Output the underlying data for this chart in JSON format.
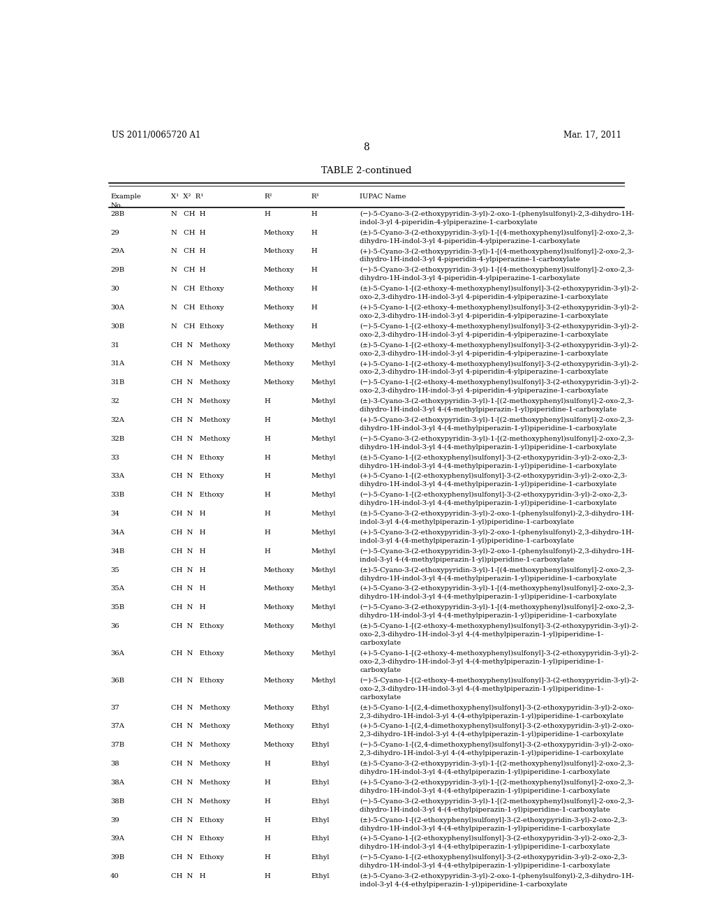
{
  "header_left": "US 2011/0065720 A1",
  "header_right": "Mar. 17, 2011",
  "page_number": "8",
  "table_title": "TABLE 2-continued",
  "bg_color": "#ffffff",
  "text_color": "#000000",
  "font_size_header": 8.5,
  "font_size_body": 7.2,
  "font_size_title_table": 9.5,
  "rows": [
    [
      "28B",
      "N   CH  H",
      "H",
      "H",
      "(−)-5-Cyano-3-(2-ethoxypyridin-3-yl)-2-oxo-1-(phenylsulfonyl)-2,3-dihydro-1H-\nindol-3-yl 4-piperidin-4-ylpiperazine-1-carboxylate"
    ],
    [
      "29",
      "N   CH  H",
      "Methoxy",
      "H",
      "(±)-5-Cyano-3-(2-ethoxypyridin-3-yl)-1-[(4-methoxyphenyl)sulfonyl]-2-oxo-2,3-\ndihydro-1H-indol-3-yl 4-piperidin-4-ylpiperazine-1-carboxylate"
    ],
    [
      "29A",
      "N   CH  H",
      "Methoxy",
      "H",
      "(+)-5-Cyano-3-(2-ethoxypyridin-3-yl)-1-[(4-methoxyphenyl)sulfonyl]-2-oxo-2,3-\ndihydro-1H-indol-3-yl 4-piperidin-4-ylpiperazine-1-carboxylate"
    ],
    [
      "29B",
      "N   CH  H",
      "Methoxy",
      "H",
      "(−)-5-Cyano-3-(2-ethoxypyridin-3-yl)-1-[(4-methoxyphenyl)sulfonyl]-2-oxo-2,3-\ndihydro-1H-indol-3-yl 4-piperidin-4-ylpiperazine-1-carboxylate"
    ],
    [
      "30",
      "N   CH  Ethoxy",
      "Methoxy",
      "H",
      "(±)-5-Cyano-1-[(2-ethoxy-4-methoxyphenyl)sulfonyl]-3-(2-ethoxypyridin-3-yl)-2-\noxo-2,3-dihydro-1H-indol-3-yl 4-piperidin-4-ylpiperazine-1-carboxylate"
    ],
    [
      "30A",
      "N   CH  Ethoxy",
      "Methoxy",
      "H",
      "(+)-5-Cyano-1-[(2-ethoxy-4-methoxyphenyl)sulfonyl]-3-(2-ethoxypyridin-3-yl)-2-\noxo-2,3-dihydro-1H-indol-3-yl 4-piperidin-4-ylpiperazine-1-carboxylate"
    ],
    [
      "30B",
      "N   CH  Ethoxy",
      "Methoxy",
      "H",
      "(−)-5-Cyano-1-[(2-ethoxy-4-methoxyphenyl)sulfonyl]-3-(2-ethoxypyridin-3-yl)-2-\noxo-2,3-dihydro-1H-indol-3-yl 4-piperidin-4-ylpiperazine-1-carboxylate"
    ],
    [
      "31",
      "CH  N   Methoxy",
      "Methoxy",
      "Methyl",
      "(±)-5-Cyano-1-[(2-ethoxy-4-methoxyphenyl)sulfonyl]-3-(2-ethoxypyridin-3-yl)-2-\noxo-2,3-dihydro-1H-indol-3-yl 4-piperidin-4-ylpiperazine-1-carboxylate"
    ],
    [
      "31A",
      "CH  N   Methoxy",
      "Methoxy",
      "Methyl",
      "(+)-5-Cyano-1-[(2-ethoxy-4-methoxyphenyl)sulfonyl]-3-(2-ethoxypyridin-3-yl)-2-\noxo-2,3-dihydro-1H-indol-3-yl 4-piperidin-4-ylpiperazine-1-carboxylate"
    ],
    [
      "31B",
      "CH  N   Methoxy",
      "Methoxy",
      "Methyl",
      "(−)-5-Cyano-1-[(2-ethoxy-4-methoxyphenyl)sulfonyl]-3-(2-ethoxypyridin-3-yl)-2-\noxo-2,3-dihydro-1H-indol-3-yl 4-piperidin-4-ylpiperazine-1-carboxylate"
    ],
    [
      "32",
      "CH  N   Methoxy",
      "H",
      "Methyl",
      "(±)-3-Cyano-3-(2-ethoxypyridin-3-yl)-1-[(2-methoxyphenyl)sulfonyl]-2-oxo-2,3-\ndihydro-1H-indol-3-yl 4-(4-methylpiperazin-1-yl)piperidine-1-carboxylate"
    ],
    [
      "32A",
      "CH  N   Methoxy",
      "H",
      "Methyl",
      "(+)-5-Cyano-3-(2-ethoxypyridin-3-yl)-1-[(2-methoxyphenyl)sulfonyl]-2-oxo-2,3-\ndihydro-1H-indol-3-yl 4-(4-methylpiperazin-1-yl)piperidine-1-carboxylate"
    ],
    [
      "32B",
      "CH  N   Methoxy",
      "H",
      "Methyl",
      "(−)-5-Cyano-3-(2-ethoxypyridin-3-yl)-1-[(2-methoxyphenyl)sulfonyl]-2-oxo-2,3-\ndihydro-1H-indol-3-yl 4-(4-methylpiperazin-1-yl)piperidine-1-carboxylate"
    ],
    [
      "33",
      "CH  N   Ethoxy",
      "H",
      "Methyl",
      "(±)-5-Cyano-1-[(2-ethoxyphenyl)sulfonyl]-3-(2-ethoxypyridin-3-yl)-2-oxo-2,3-\ndihydro-1H-indol-3-yl 4-(4-methylpiperazin-1-yl)piperidine-1-carboxylate"
    ],
    [
      "33A",
      "CH  N   Ethoxy",
      "H",
      "Methyl",
      "(+)-5-Cyano-1-[(2-ethoxyphenyl)sulfonyl]-3-(2-ethoxypyridin-3-yl)-2-oxo-2,3-\ndihydro-1H-indol-3-yl 4-(4-methylpiperazin-1-yl)piperidine-1-carboxylate"
    ],
    [
      "33B",
      "CH  N   Ethoxy",
      "H",
      "Methyl",
      "(−)-5-Cyano-1-[(2-ethoxyphenyl)sulfonyl]-3-(2-ethoxypyridin-3-yl)-2-oxo-2,3-\ndihydro-1H-indol-3-yl 4-(4-methylpiperazin-1-yl)piperidine-1-carboxylate"
    ],
    [
      "34",
      "CH  N   H",
      "H",
      "Methyl",
      "(±)-5-Cyano-3-(2-ethoxypyridin-3-yl)-2-oxo-1-(phenylsulfonyl)-2,3-dihydro-1H-\nindol-3-yl 4-(4-methylpiperazin-1-yl)piperidine-1-carboxylate"
    ],
    [
      "34A",
      "CH  N   H",
      "H",
      "Methyl",
      "(+)-5-Cyano-3-(2-ethoxypyridin-3-yl)-2-oxo-1-(phenylsulfonyl)-2,3-dihydro-1H-\nindol-3-yl 4-(4-methylpiperazin-1-yl)piperidine-1-carboxylate"
    ],
    [
      "34B",
      "CH  N   H",
      "H",
      "Methyl",
      "(−)-5-Cyano-3-(2-ethoxypyridin-3-yl)-2-oxo-1-(phenylsulfonyl)-2,3-dihydro-1H-\nindol-3-yl 4-(4-methylpiperazin-1-yl)piperidine-1-carboxylate"
    ],
    [
      "35",
      "CH  N   H",
      "Methoxy",
      "Methyl",
      "(±)-5-Cyano-3-(2-ethoxypyridin-3-yl)-1-[(4-methoxyphenyl)sulfonyl]-2-oxo-2,3-\ndihydro-1H-indol-3-yl 4-(4-methylpiperazin-1-yl)piperidine-1-carboxylate"
    ],
    [
      "35A",
      "CH  N   H",
      "Methoxy",
      "Methyl",
      "(+)-5-Cyano-3-(2-ethoxypyridin-3-yl)-1-[(4-methoxyphenyl)sulfonyl]-2-oxo-2,3-\ndihydro-1H-indol-3-yl 4-(4-methylpiperazin-1-yl)piperidine-1-carboxylate"
    ],
    [
      "35B",
      "CH  N   H",
      "Methoxy",
      "Methyl",
      "(−)-5-Cyano-3-(2-ethoxypyridin-3-yl)-1-[(4-methoxyphenyl)sulfonyl]-2-oxo-2,3-\ndihydro-1H-indol-3-yl 4-(4-methylpiperazin-1-yl)piperidine-1-carboxylate"
    ],
    [
      "36",
      "CH  N   Ethoxy",
      "Methoxy",
      "Methyl",
      "(±)-5-Cyano-1-[(2-ethoxy-4-methoxyphenyl)sulfonyl]-3-(2-ethoxypyridin-3-yl)-2-\noxo-2,3-dihydro-1H-indol-3-yl 4-(4-methylpiperazin-1-yl)piperidine-1-\ncarboxylate"
    ],
    [
      "36A",
      "CH  N   Ethoxy",
      "Methoxy",
      "Methyl",
      "(+)-5-Cyano-1-[(2-ethoxy-4-methoxyphenyl)sulfonyl]-3-(2-ethoxypyridin-3-yl)-2-\noxo-2,3-dihydro-1H-indol-3-yl 4-(4-methylpiperazin-1-yl)piperidine-1-\ncarboxylate"
    ],
    [
      "36B",
      "CH  N   Ethoxy",
      "Methoxy",
      "Methyl",
      "(−)-5-Cyano-1-[(2-ethoxy-4-methoxyphenyl)sulfonyl]-3-(2-ethoxypyridin-3-yl)-2-\noxo-2,3-dihydro-1H-indol-3-yl 4-(4-methylpiperazin-1-yl)piperidine-1-\ncarboxylate"
    ],
    [
      "37",
      "CH  N   Methoxy",
      "Methoxy",
      "Ethyl",
      "(±)-5-Cyano-1-[(2,4-dimethoxyphenyl)sulfonyl]-3-(2-ethoxypyridin-3-yl)-2-oxo-\n2,3-dihydro-1H-indol-3-yl 4-(4-ethylpiperazin-1-yl)piperidine-1-carboxylate"
    ],
    [
      "37A",
      "CH  N   Methoxy",
      "Methoxy",
      "Ethyl",
      "(+)-5-Cyano-1-[(2,4-dimethoxyphenyl)sulfonyl]-3-(2-ethoxypyridin-3-yl)-2-oxo-\n2,3-dihydro-1H-indol-3-yl 4-(4-ethylpiperazin-1-yl)piperidine-1-carboxylate"
    ],
    [
      "37B",
      "CH  N   Methoxy",
      "Methoxy",
      "Ethyl",
      "(−)-5-Cyano-1-[(2,4-dimethoxyphenyl)sulfonyl]-3-(2-ethoxypyridin-3-yl)-2-oxo-\n2,3-dihydro-1H-indol-3-yl 4-(4-ethylpiperazin-1-yl)piperidine-1-carboxylate"
    ],
    [
      "38",
      "CH  N   Methoxy",
      "H",
      "Ethyl",
      "(±)-5-Cyano-3-(2-ethoxypyridin-3-yl)-1-[(2-methoxyphenyl)sulfonyl]-2-oxo-2,3-\ndihydro-1H-indol-3-yl 4-(4-ethylpiperazin-1-yl)piperidine-1-carboxylate"
    ],
    [
      "38A",
      "CH  N   Methoxy",
      "H",
      "Ethyl",
      "(+)-5-Cyano-3-(2-ethoxypyridin-3-yl)-1-[(2-methoxyphenyl)sulfonyl]-2-oxo-2,3-\ndihydro-1H-indol-3-yl 4-(4-ethylpiperazin-1-yl)piperidine-1-carboxylate"
    ],
    [
      "38B",
      "CH  N   Methoxy",
      "H",
      "Ethyl",
      "(−)-5-Cyano-3-(2-ethoxypyridin-3-yl)-1-[(2-methoxyphenyl)sulfonyl]-2-oxo-2,3-\ndihydro-1H-indol-3-yl 4-(4-ethylpiperazin-1-yl)piperidine-1-carboxylate"
    ],
    [
      "39",
      "CH  N   Ethoxy",
      "H",
      "Ethyl",
      "(±)-5-Cyano-1-[(2-ethoxyphenyl)sulfonyl]-3-(2-ethoxypyridin-3-yl)-2-oxo-2,3-\ndihydro-1H-indol-3-yl 4-(4-ethylpiperazin-1-yl)piperidine-1-carboxylate"
    ],
    [
      "39A",
      "CH  N   Ethoxy",
      "H",
      "Ethyl",
      "(+)-5-Cyano-1-[(2-ethoxyphenyl)sulfonyl]-3-(2-ethoxypyridin-3-yl)-2-oxo-2,3-\ndihydro-1H-indol-3-yl 4-(4-ethylpiperazin-1-yl)piperidine-1-carboxylate"
    ],
    [
      "39B",
      "CH  N   Ethoxy",
      "H",
      "Ethyl",
      "(−)-5-Cyano-1-[(2-ethoxyphenyl)sulfonyl]-3-(2-ethoxypyridin-3-yl)-2-oxo-2,3-\ndihydro-1H-indol-3-yl 4-(4-ethylpiperazin-1-yl)piperidine-1-carboxylate"
    ],
    [
      "40",
      "CH  N   H",
      "H",
      "Ethyl",
      "(±)-5-Cyano-3-(2-ethoxypyridin-3-yl)-2-oxo-1-(phenylsulfonyl)-2,3-dihydro-1H-\nindol-3-yl 4-(4-ethylpiperazin-1-yl)piperidine-1-carboxylate"
    ]
  ]
}
